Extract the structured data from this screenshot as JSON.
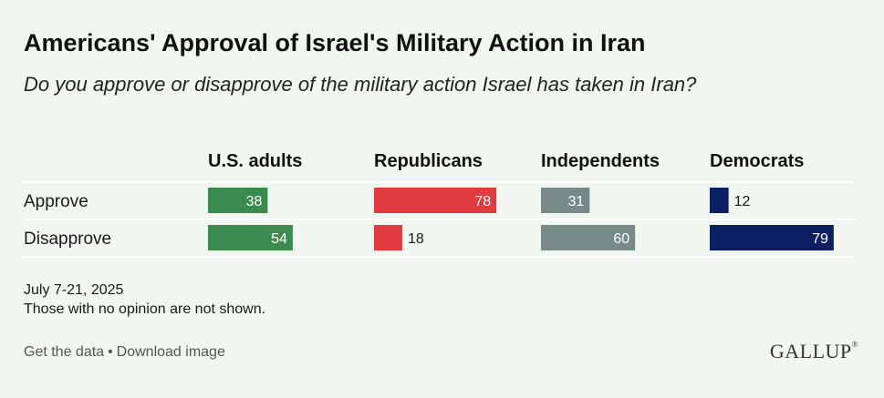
{
  "header": {
    "title": "Americans' Approval of Israel's Military Action in Iran",
    "subtitle": "Do you approve or disapprove of the military action Israel has taken in Iran?"
  },
  "chart_data": {
    "type": "bar",
    "categories": [
      "Approve",
      "Disapprove"
    ],
    "series": [
      {
        "name": "U.S. adults",
        "values": [
          38,
          54
        ],
        "color": "#3b8a4f"
      },
      {
        "name": "Republicans",
        "values": [
          78,
          18
        ],
        "color": "#e03c3f"
      },
      {
        "name": "Independents",
        "values": [
          31,
          60
        ],
        "color": "#768b87"
      },
      {
        "name": "Democrats",
        "values": [
          12,
          79
        ],
        "color": "#0c1f63"
      }
    ],
    "xlim": [
      0,
      100
    ]
  },
  "notes": {
    "date": "July 7-21, 2025",
    "footnote": "Those with no opinion are not shown."
  },
  "footer": {
    "get_data": "Get the data",
    "separator": "•",
    "download": "Download image",
    "logo": "GALLUP",
    "logo_mark": "®"
  }
}
